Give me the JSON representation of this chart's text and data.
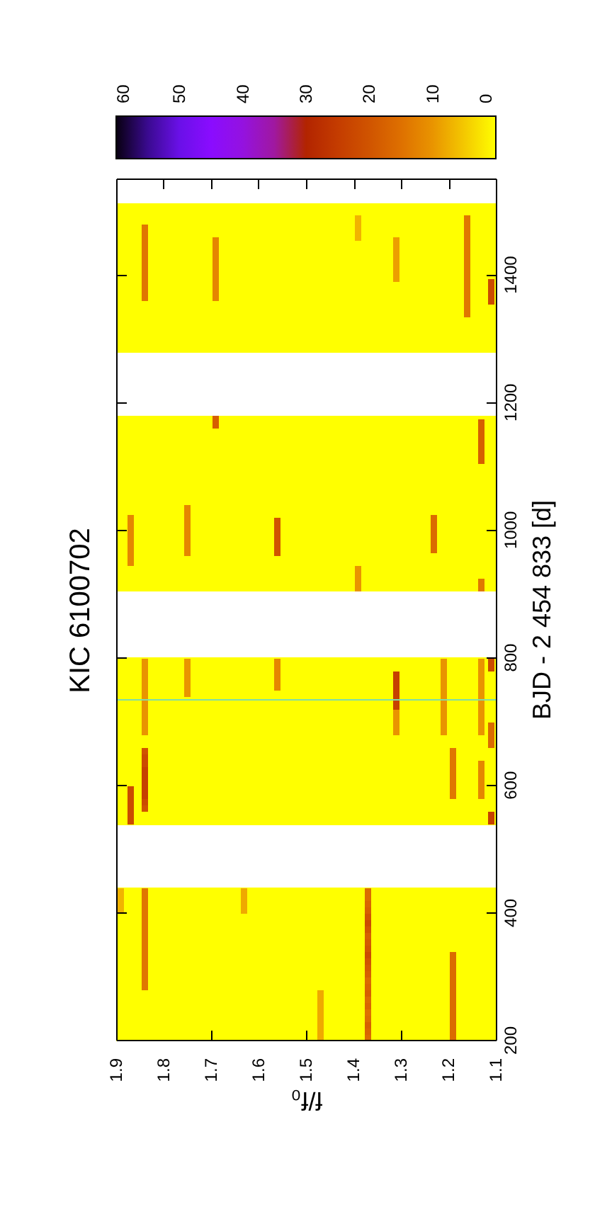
{
  "chart_data": {
    "type": "scatter",
    "title": "KIC 6100702",
    "xlabel": "f/f₀",
    "ylabel": "BJD - 2 454 833 [d]",
    "x": [
      1.87,
      1.87,
      1.87,
      1.87,
      1.87,
      1.87,
      1.87,
      1.87,
      1.87,
      1.87,
      1.87,
      1.87,
      1.87,
      1.87,
      1.84,
      1.84,
      1.84,
      1.84,
      1.84,
      1.84,
      1.84,
      1.84,
      1.84,
      1.84,
      1.84,
      1.84,
      1.84,
      1.84,
      1.84,
      1.84,
      1.84,
      1.84,
      1.84,
      1.84,
      1.84,
      1.84,
      1.84,
      1.84,
      1.84,
      1.84,
      1.84,
      1.84,
      1.84,
      1.84,
      1.84,
      1.84,
      1.84,
      1.84,
      1.84,
      1.84,
      1.84,
      1.84,
      1.84,
      1.84,
      1.84,
      1.84,
      1.84,
      1.84,
      1.84,
      1.84,
      1.84,
      1.84,
      1.84,
      1.84,
      1.75,
      1.75,
      1.75,
      1.75,
      1.75,
      1.75,
      1.75,
      1.75,
      1.75,
      1.75,
      1.75,
      1.75,
      1.75,
      1.75,
      1.69,
      1.69,
      1.69,
      1.69,
      1.69,
      1.69,
      1.69,
      1.69,
      1.69,
      1.69,
      1.69,
      1.69,
      1.56,
      1.56,
      1.56,
      1.56,
      1.56,
      1.56,
      1.56,
      1.56,
      1.56,
      1.56,
      1.56,
      1.39,
      1.39,
      1.39,
      1.39,
      1.37,
      1.37,
      1.37,
      1.37,
      1.37,
      1.37,
      1.37,
      1.37,
      1.37,
      1.37,
      1.37,
      1.37,
      1.37,
      1.37,
      1.37,
      1.37,
      1.37,
      1.37,
      1.37,
      1.37,
      1.37,
      1.37,
      1.37,
      1.37,
      1.31,
      1.31,
      1.31,
      1.31,
      1.31,
      1.31,
      1.31,
      1.31,
      1.31,
      1.31,
      1.23,
      1.23,
      1.23,
      1.23,
      1.23,
      1.23,
      1.21,
      1.21,
      1.21,
      1.21,
      1.21,
      1.21,
      1.21,
      1.21,
      1.21,
      1.21,
      1.21,
      1.21,
      1.19,
      1.19,
      1.19,
      1.19,
      1.19,
      1.19,
      1.19,
      1.19,
      1.19,
      1.19,
      1.19,
      1.19,
      1.19,
      1.19,
      1.19,
      1.19,
      1.19,
      1.19,
      1.19,
      1.19,
      1.19,
      1.19,
      1.16,
      1.16,
      1.16,
      1.16,
      1.16,
      1.16,
      1.16,
      1.16,
      1.16,
      1.16,
      1.16,
      1.16,
      1.16,
      1.16,
      1.16,
      1.16,
      1.13,
      1.13,
      1.13,
      1.13,
      1.13,
      1.13,
      1.13,
      1.13,
      1.13,
      1.13,
      1.13,
      1.13,
      1.13,
      1.13,
      1.13,
      1.13,
      1.13,
      1.13,
      1.13,
      1.13,
      1.13,
      1.13,
      1.13,
      1.13,
      1.13,
      1.13,
      1.13,
      1.11,
      1.11,
      1.11,
      1.11,
      1.11,
      1.11,
      1.11,
      1.11,
      1.11,
      1.11,
      1.11,
      1.11,
      1.47,
      1.47,
      1.47,
      1.47,
      1.47,
      1.47,
      1.47,
      1.47,
      1.63,
      1.63,
      1.63,
      1.63,
      1.31,
      1.31,
      1.31,
      1.31,
      1.31,
      1.31,
      1.31,
      1.39,
      1.39,
      1.39,
      1.39,
      1.89,
      1.89,
      1.89,
      1.89
    ],
    "values": [
      545,
      555,
      565,
      575,
      585,
      595,
      950,
      960,
      970,
      980,
      990,
      1000,
      1010,
      1020,
      285,
      295,
      305,
      315,
      325,
      335,
      345,
      355,
      365,
      375,
      385,
      395,
      405,
      415,
      425,
      435,
      565,
      575,
      585,
      595,
      605,
      615,
      625,
      635,
      645,
      655,
      685,
      695,
      705,
      715,
      725,
      735,
      745,
      755,
      765,
      775,
      785,
      795,
      1365,
      1375,
      1385,
      1395,
      1405,
      1415,
      1425,
      1435,
      1445,
      1455,
      1465,
      1475,
      745,
      755,
      765,
      775,
      785,
      795,
      965,
      975,
      985,
      995,
      1005,
      1015,
      1025,
      1035,
      1365,
      1375,
      1385,
      1395,
      1405,
      1415,
      1425,
      1435,
      1445,
      1455,
      1165,
      1175,
      755,
      765,
      775,
      785,
      795,
      965,
      975,
      985,
      995,
      1005,
      1015,
      910,
      920,
      930,
      940,
      205,
      215,
      225,
      235,
      245,
      255,
      265,
      275,
      285,
      295,
      305,
      315,
      325,
      335,
      345,
      355,
      365,
      375,
      385,
      395,
      405,
      415,
      425,
      435,
      685,
      695,
      705,
      715,
      725,
      735,
      745,
      755,
      765,
      775,
      970,
      980,
      990,
      1000,
      1010,
      1020,
      685,
      695,
      705,
      715,
      725,
      735,
      745,
      755,
      765,
      775,
      785,
      795,
      205,
      215,
      225,
      235,
      245,
      255,
      265,
      275,
      285,
      295,
      305,
      315,
      325,
      335,
      585,
      595,
      605,
      615,
      625,
      635,
      645,
      655,
      1340,
      1350,
      1360,
      1370,
      1380,
      1390,
      1400,
      1410,
      1420,
      1430,
      1440,
      1450,
      1460,
      1470,
      1480,
      1490,
      585,
      595,
      605,
      615,
      625,
      635,
      910,
      920,
      1110,
      1120,
      1130,
      1140,
      1150,
      1160,
      1170,
      685,
      695,
      705,
      715,
      725,
      735,
      745,
      755,
      765,
      775,
      785,
      795,
      545,
      555,
      665,
      675,
      685,
      695,
      785,
      795,
      1360,
      1370,
      1380,
      1390,
      205,
      215,
      225,
      235,
      245,
      255,
      265,
      275,
      405,
      415,
      425,
      435,
      1395,
      1405,
      1415,
      1425,
      1435,
      1445,
      1455,
      1460,
      1470,
      1480,
      1490,
      405,
      415,
      425,
      435
    ],
    "cvalues": [
      22,
      22,
      22,
      22,
      22,
      22,
      12,
      12,
      12,
      12,
      12,
      12,
      12,
      12,
      14,
      14,
      14,
      14,
      14,
      14,
      14,
      14,
      14,
      14,
      14,
      14,
      14,
      14,
      14,
      14,
      20,
      22,
      24,
      24,
      24,
      24,
      24,
      22,
      22,
      20,
      10,
      10,
      10,
      10,
      10,
      10,
      10,
      10,
      10,
      10,
      10,
      10,
      14,
      14,
      14,
      14,
      14,
      14,
      14,
      14,
      14,
      14,
      14,
      14,
      10,
      10,
      10,
      10,
      10,
      10,
      12,
      12,
      12,
      12,
      12,
      12,
      12,
      12,
      12,
      12,
      12,
      12,
      12,
      12,
      12,
      12,
      12,
      12,
      18,
      18,
      12,
      12,
      12,
      12,
      12,
      20,
      20,
      20,
      20,
      20,
      20,
      10,
      10,
      10,
      10,
      16,
      17,
      18,
      16,
      15,
      17,
      16,
      18,
      17,
      16,
      18,
      19,
      20,
      22,
      20,
      19,
      18,
      20,
      22,
      20,
      18,
      17,
      16,
      16,
      10,
      10,
      10,
      10,
      24,
      24,
      24,
      24,
      24,
      24,
      16,
      16,
      16,
      16,
      16,
      16,
      10,
      10,
      10,
      10,
      10,
      10,
      10,
      10,
      10,
      10,
      10,
      10,
      16,
      16,
      16,
      16,
      16,
      16,
      16,
      16,
      16,
      16,
      16,
      16,
      16,
      16,
      14,
      14,
      14,
      14,
      14,
      14,
      14,
      14,
      14,
      14,
      14,
      14,
      14,
      14,
      14,
      14,
      14,
      14,
      14,
      14,
      14,
      14,
      14,
      14,
      12,
      12,
      12,
      12,
      12,
      12,
      14,
      14,
      18,
      18,
      18,
      18,
      18,
      18,
      18,
      10,
      10,
      10,
      10,
      10,
      10,
      10,
      10,
      10,
      10,
      10,
      10,
      24,
      24,
      16,
      16,
      16,
      16,
      22,
      22,
      22,
      22,
      22,
      22,
      8,
      8,
      8,
      8,
      8,
      8,
      8,
      8,
      8,
      8,
      8,
      8,
      9,
      9,
      9,
      9,
      9,
      9,
      9,
      7,
      7,
      7,
      7,
      7,
      7,
      7,
      7
    ],
    "marker": "square",
    "xlim": [
      1.9,
      1.1
    ],
    "xticks": [
      1.9,
      1.8,
      1.7,
      1.6,
      1.5,
      1.4,
      1.3,
      1.2,
      1.1
    ],
    "ylim": [
      200,
      1550
    ],
    "yticks": [
      200,
      400,
      600,
      800,
      1000,
      1200,
      1400
    ],
    "clim": [
      0,
      60
    ],
    "cticks": [
      0,
      10,
      20,
      30,
      40,
      50,
      60
    ],
    "bands": [
      {
        "axis": "y",
        "from": 200,
        "to": 441,
        "color": "#ffff00"
      },
      {
        "axis": "y",
        "from": 539,
        "to": 802,
        "color": "#ffff00"
      },
      {
        "axis": "y",
        "from": 905,
        "to": 1180,
        "color": "#ffff00"
      },
      {
        "axis": "y",
        "from": 1279,
        "to": 1513,
        "color": "#ffff00"
      }
    ],
    "ref_lines": [
      {
        "axis": "y",
        "value": 735,
        "color": "#7fdca8"
      }
    ]
  }
}
